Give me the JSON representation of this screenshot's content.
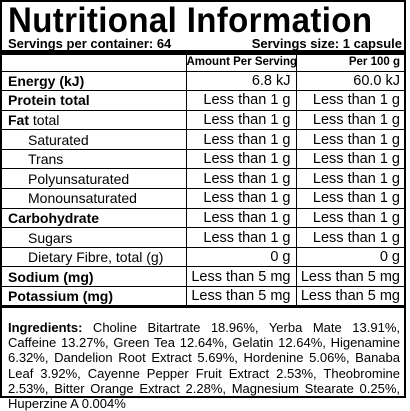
{
  "panel": {
    "title": "Nutritional Information",
    "servings_per_container": "Servings per container: 64",
    "serving_size": "Servings size: 1 capsule"
  },
  "table": {
    "headers": [
      "",
      "Amount Per Serving",
      "Per 100 g"
    ],
    "rows": [
      {
        "name": "Energy (kJ)",
        "per_serving": "6.8 kJ",
        "per_100g": "60.0 kJ"
      },
      {
        "name": "Protein total",
        "per_serving": "Less than 1 g",
        "per_100g": "Less than 1 g"
      },
      {
        "name": "Fat total",
        "per_serving": "Less than 1 g",
        "per_100g": "Less than 1 g"
      },
      {
        "name": "Saturated",
        "per_serving": "Less than 1 g",
        "per_100g": "Less than 1 g"
      },
      {
        "name": "Trans",
        "per_serving": "Less than 1 g",
        "per_100g": "Less than 1 g"
      },
      {
        "name": "Polyunsaturated",
        "per_serving": "Less than 1 g",
        "per_100g": "Less than 1 g"
      },
      {
        "name": "Monounsaturated",
        "per_serving": "Less than 1 g",
        "per_100g": "Less than 1 g"
      },
      {
        "name": "Carbohydrate",
        "per_serving": "Less than 1 g",
        "per_100g": "Less than 1 g"
      },
      {
        "name": "Sugars",
        "per_serving": "Less than 1 g",
        "per_100g": "Less than 1 g"
      },
      {
        "name": "Dietary Fibre, total (g)",
        "per_serving": "0 g",
        "per_100g": "0 g"
      },
      {
        "name": "Sodium (mg)",
        "per_serving": "Less than 5 mg",
        "per_100g": "Less than 5 mg"
      },
      {
        "name": "Potassium (mg)",
        "per_serving": "Less than 5 mg",
        "per_100g": "Less than 5 mg"
      }
    ],
    "fat_label_bold": "Fat",
    "fat_label_rest": " total"
  },
  "ingredients": {
    "label": "Ingredients:",
    "text": " Choline Bitartrate 18.96%, Yerba Mate 13.91%, Caffeine 13.27%, Green Tea 12.64%, Gelatin 12.64%, Higenamine 6.32%, Dandelion Root Extract 5.69%, Hordenine 5.06%, Banaba Leaf 3.92%, Cayenne Pepper Fruit Extract 2.53%, Theobromine 2.53%, Bitter Orange Extract 2.28%, Magnesium Stearate 0.25%, Huperzine A 0.004%"
  }
}
